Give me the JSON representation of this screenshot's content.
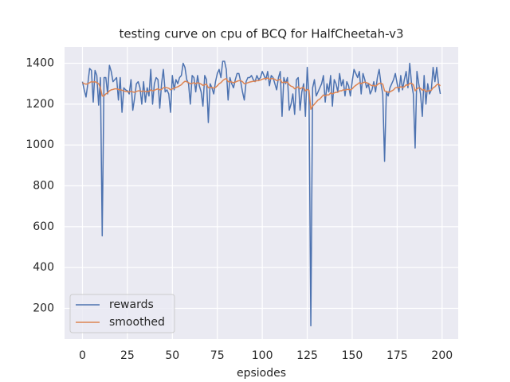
{
  "chart_data": {
    "type": "line",
    "title": "testing curve on cpu of BCQ for HalfCheetah-v3",
    "x_label": "epsiodes",
    "x": [
      0,
      1,
      2,
      3,
      4,
      5,
      6,
      7,
      8,
      9,
      10,
      11,
      12,
      13,
      14,
      15,
      16,
      17,
      18,
      19,
      20,
      21,
      22,
      23,
      24,
      25,
      26,
      27,
      28,
      29,
      30,
      31,
      32,
      33,
      34,
      35,
      36,
      37,
      38,
      39,
      40,
      41,
      42,
      43,
      44,
      45,
      46,
      47,
      48,
      49,
      50,
      51,
      52,
      53,
      54,
      55,
      56,
      57,
      58,
      59,
      60,
      61,
      62,
      63,
      64,
      65,
      66,
      67,
      68,
      69,
      70,
      71,
      72,
      73,
      74,
      75,
      76,
      77,
      78,
      79,
      80,
      81,
      82,
      83,
      84,
      85,
      86,
      87,
      88,
      89,
      90,
      91,
      92,
      93,
      94,
      95,
      96,
      97,
      98,
      99,
      100,
      101,
      102,
      103,
      104,
      105,
      106,
      107,
      108,
      109,
      110,
      111,
      112,
      113,
      114,
      115,
      116,
      117,
      118,
      119,
      120,
      121,
      122,
      123,
      124,
      125,
      126,
      127,
      128,
      129,
      130,
      131,
      132,
      133,
      134,
      135,
      136,
      137,
      138,
      139,
      140,
      141,
      142,
      143,
      144,
      145,
      146,
      147,
      148,
      149,
      150,
      151,
      152,
      153,
      154,
      155,
      156,
      157,
      158,
      159,
      160,
      161,
      162,
      163,
      164,
      165,
      166,
      167,
      168,
      169,
      170,
      171,
      172,
      173,
      174,
      175,
      176,
      177,
      178,
      179,
      180,
      181,
      182,
      183,
      184,
      185,
      186,
      187,
      188,
      189,
      190,
      191,
      192,
      193,
      194,
      195,
      196,
      197,
      198,
      199
    ],
    "series": [
      {
        "name": "rewards",
        "color": "#4c72b0",
        "values": [
          1310,
          1270,
          1235,
          1300,
          1375,
          1365,
          1210,
          1365,
          1340,
          1195,
          1330,
          555,
          1330,
          1330,
          1250,
          1390,
          1360,
          1310,
          1320,
          1330,
          1220,
          1330,
          1160,
          1280,
          1270,
          1265,
          1250,
          1320,
          1170,
          1230,
          1300,
          1310,
          1280,
          1200,
          1310,
          1210,
          1280,
          1240,
          1370,
          1200,
          1300,
          1330,
          1320,
          1180,
          1300,
          1370,
          1260,
          1270,
          1250,
          1160,
          1340,
          1270,
          1320,
          1300,
          1330,
          1340,
          1400,
          1380,
          1320,
          1300,
          1200,
          1340,
          1330,
          1260,
          1340,
          1290,
          1260,
          1190,
          1340,
          1320,
          1110,
          1300,
          1280,
          1250,
          1310,
          1350,
          1370,
          1330,
          1410,
          1410,
          1370,
          1220,
          1330,
          1300,
          1280,
          1320,
          1350,
          1350,
          1310,
          1260,
          1220,
          1310,
          1330,
          1330,
          1340,
          1320,
          1310,
          1340,
          1320,
          1330,
          1360,
          1340,
          1320,
          1360,
          1290,
          1340,
          1330,
          1300,
          1270,
          1330,
          1360,
          1140,
          1330,
          1300,
          1330,
          1170,
          1200,
          1250,
          1150,
          1320,
          1330,
          1170,
          1260,
          1300,
          1140,
          1380,
          1230,
          115,
          1280,
          1320,
          1240,
          1260,
          1280,
          1300,
          1340,
          1210,
          1300,
          1260,
          1340,
          1190,
          1320,
          1300,
          1260,
          1350,
          1290,
          1320,
          1240,
          1310,
          1290,
          1240,
          1310,
          1370,
          1350,
          1330,
          1360,
          1250,
          1350,
          1320,
          1280,
          1300,
          1250,
          1270,
          1310,
          1260,
          1330,
          1370,
          1300,
          1250,
          920,
          1260,
          1240,
          1280,
          1300,
          1320,
          1350,
          1300,
          1260,
          1340,
          1270,
          1320,
          1360,
          1280,
          1400,
          1300,
          1250,
          985,
          1360,
          1300,
          1250,
          1140,
          1340,
          1200,
          1300,
          1250,
          1270,
          1380,
          1310,
          1380,
          1300,
          1250
        ]
      },
      {
        "name": "smoothed",
        "color": "#dd8452",
        "values": [
          1305,
          1300,
          1298,
          1300,
          1305,
          1310,
          1308,
          1310,
          1305,
          1300,
          1280,
          1240,
          1240,
          1250,
          1255,
          1265,
          1270,
          1272,
          1275,
          1275,
          1272,
          1270,
          1268,
          1265,
          1262,
          1262,
          1260,
          1262,
          1260,
          1258,
          1262,
          1265,
          1265,
          1262,
          1265,
          1262,
          1262,
          1262,
          1270,
          1265,
          1268,
          1272,
          1275,
          1270,
          1272,
          1280,
          1282,
          1280,
          1278,
          1270,
          1275,
          1278,
          1282,
          1285,
          1290,
          1295,
          1305,
          1312,
          1310,
          1305,
          1300,
          1302,
          1305,
          1300,
          1305,
          1302,
          1298,
          1292,
          1295,
          1298,
          1280,
          1282,
          1282,
          1278,
          1282,
          1290,
          1300,
          1305,
          1315,
          1322,
          1325,
          1310,
          1310,
          1308,
          1305,
          1308,
          1312,
          1315,
          1315,
          1310,
          1300,
          1302,
          1305,
          1308,
          1310,
          1312,
          1312,
          1315,
          1315,
          1318,
          1322,
          1325,
          1325,
          1328,
          1322,
          1325,
          1325,
          1322,
          1315,
          1318,
          1322,
          1305,
          1308,
          1306,
          1308,
          1295,
          1288,
          1285,
          1275,
          1280,
          1285,
          1275,
          1280,
          1282,
          1265,
          1272,
          1268,
          1175,
          1190,
          1200,
          1210,
          1220,
          1225,
          1235,
          1245,
          1240,
          1245,
          1245,
          1255,
          1250,
          1255,
          1258,
          1258,
          1265,
          1265,
          1270,
          1268,
          1272,
          1272,
          1270,
          1275,
          1285,
          1292,
          1298,
          1305,
          1300,
          1305,
          1308,
          1305,
          1302,
          1295,
          1290,
          1292,
          1288,
          1295,
          1302,
          1302,
          1298,
          1265,
          1262,
          1258,
          1260,
          1265,
          1270,
          1280,
          1282,
          1280,
          1285,
          1282,
          1285,
          1295,
          1292,
          1302,
          1302,
          1295,
          1265,
          1275,
          1280,
          1278,
          1268,
          1272,
          1262,
          1265,
          1265,
          1268,
          1280,
          1285,
          1295,
          1298,
          1290
        ]
      }
    ],
    "xlim": [
      -9.95,
      208.95
    ],
    "ylim": [
      50,
      1480
    ],
    "xticks": [
      0,
      25,
      50,
      75,
      100,
      125,
      150,
      175,
      200
    ],
    "yticks": [
      200,
      400,
      600,
      800,
      1000,
      1200,
      1400
    ],
    "grid": true,
    "legend": "lower left"
  }
}
